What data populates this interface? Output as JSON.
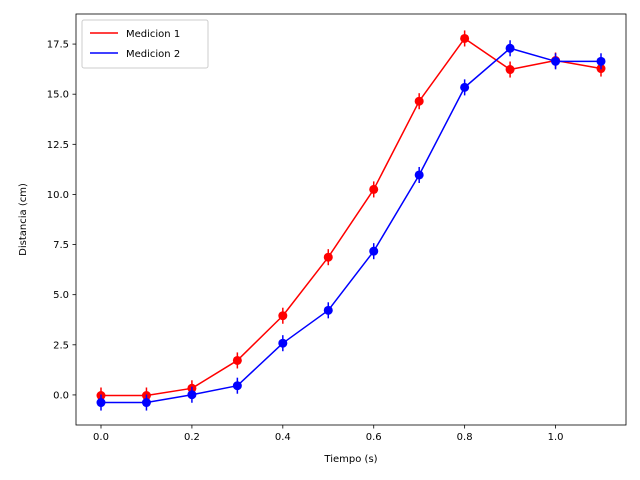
{
  "chart_data": {
    "type": "line",
    "title": "",
    "xlabel": "Tiempo (s)",
    "ylabel": "Distancia (cm)",
    "xlim": [
      -0.055,
      1.155
    ],
    "ylim": [
      -1.5,
      19.0
    ],
    "x_ticks": [
      0.0,
      0.2,
      0.4,
      0.6,
      0.8,
      1.0
    ],
    "x_tick_labels": [
      "0.0",
      "0.2",
      "0.4",
      "0.6",
      "0.8",
      "1.0"
    ],
    "y_ticks": [
      0.0,
      2.5,
      5.0,
      7.5,
      10.0,
      12.5,
      15.0,
      17.5
    ],
    "y_tick_labels": [
      "0.0",
      "2.5",
      "5.0",
      "7.5",
      "10.0",
      "12.5",
      "15.0",
      "17.5"
    ],
    "grid": false,
    "legend_position": "top-left",
    "error_bar_half_width": 0.4,
    "series": [
      {
        "name": "Medicion 1",
        "color": "#ff0000",
        "x": [
          0.0,
          0.1,
          0.2,
          0.3,
          0.4,
          0.5,
          0.6,
          0.7,
          0.8,
          0.9,
          1.0,
          1.1
        ],
        "y": [
          -0.03,
          -0.03,
          0.33,
          1.72,
          3.95,
          6.87,
          10.25,
          14.65,
          17.78,
          16.23,
          16.68,
          16.28
        ]
      },
      {
        "name": "Medicion 2",
        "color": "#0000ff",
        "x": [
          0.0,
          0.1,
          0.2,
          0.3,
          0.4,
          0.5,
          0.6,
          0.7,
          0.8,
          0.9,
          1.0,
          1.1
        ],
        "y": [
          -0.38,
          -0.38,
          0.01,
          0.46,
          2.58,
          4.22,
          7.17,
          10.97,
          15.34,
          17.29,
          16.64,
          16.64
        ]
      }
    ]
  }
}
